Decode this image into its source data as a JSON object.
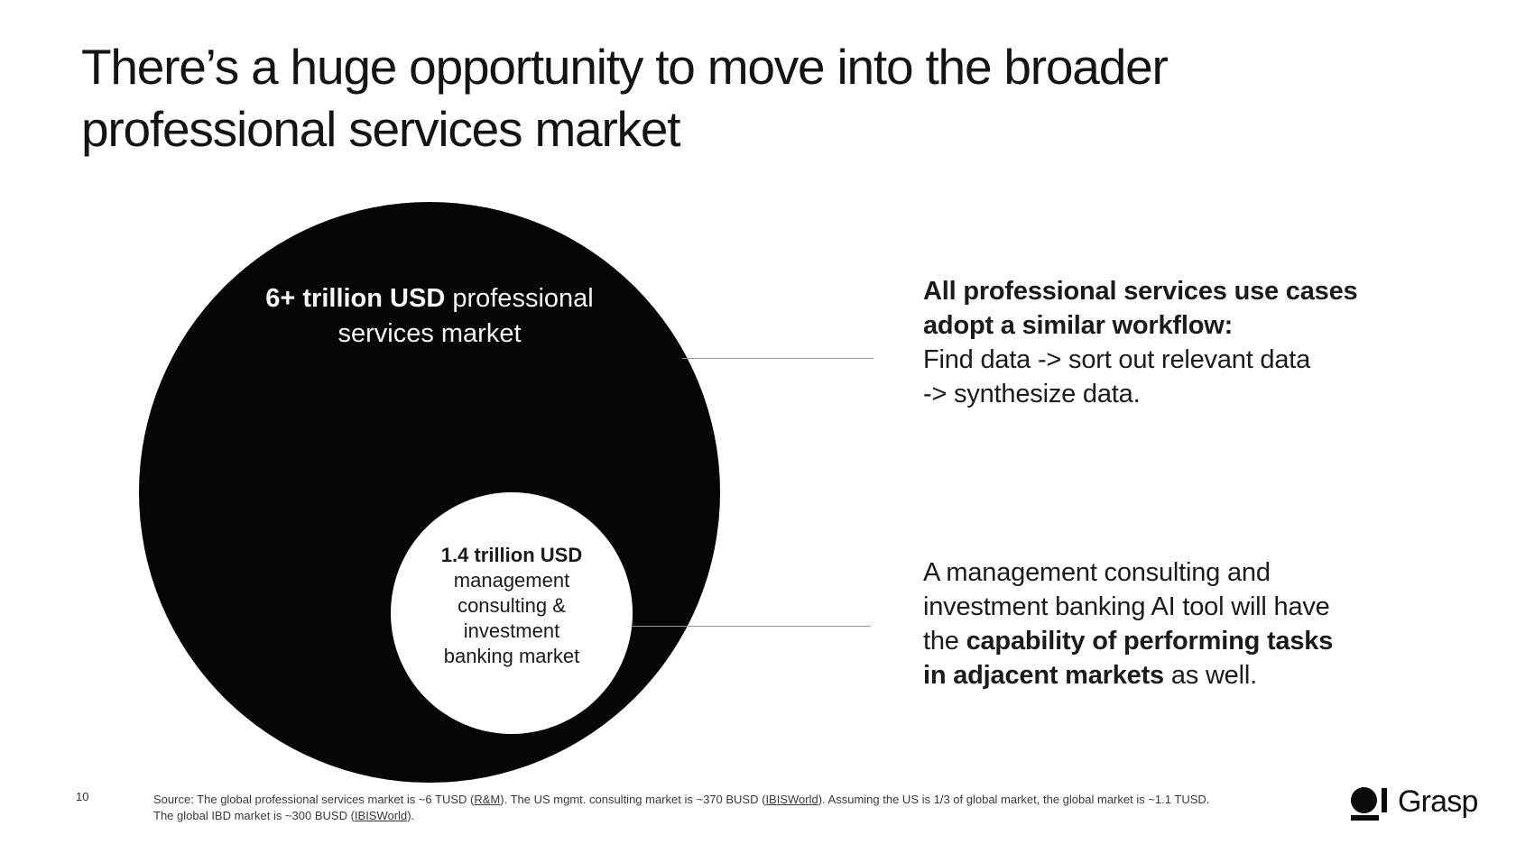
{
  "title": {
    "line1": "There’s a huge opportunity to move into the broader",
    "line2": "professional services market"
  },
  "diagram": {
    "outer_circle": {
      "value": "6+ trillion USD",
      "label_after_value": " professional",
      "label_line2": "services market"
    },
    "inner_circle": {
      "value": "1.4 trillion USD",
      "line2": "management",
      "line3": "consulting &",
      "line4": "investment",
      "line5": "banking market"
    }
  },
  "callouts": {
    "workflow": {
      "bold_line1": "All professional services use cases",
      "bold_line2": "adopt a similar workflow:",
      "line3": "Find data -> sort out relevant data",
      "line4": "-> synthesize data."
    },
    "adjacent": {
      "line1": "A management consulting and",
      "line2": "investment banking AI tool will have",
      "line3_regular": "the ",
      "line3_bold": "capability of performing tasks",
      "line4_bold": "in adjacent markets",
      "line4_regular": " as well."
    }
  },
  "footer": {
    "page_number": "10",
    "footnote": {
      "seg1": "Source: The global professional services market is ~6 TUSD (",
      "link1": "R&M",
      "seg2": "). The US mgmt. consulting market is ~370 BUSD (",
      "link2": "IBISWorld",
      "seg3": "). Assuming the US is 1/3 of global market, the global market is ~1.1 TUSD. The global IBD market is ~300 BUSD (",
      "link3": "IBISWorld",
      "seg4": ")."
    },
    "logo_text": "Grasp"
  },
  "colors": {
    "circle_fill": "#050505",
    "inner_circle_fill": "#ffffff",
    "connector_gray": "#999999",
    "text_dark": "#141414"
  }
}
